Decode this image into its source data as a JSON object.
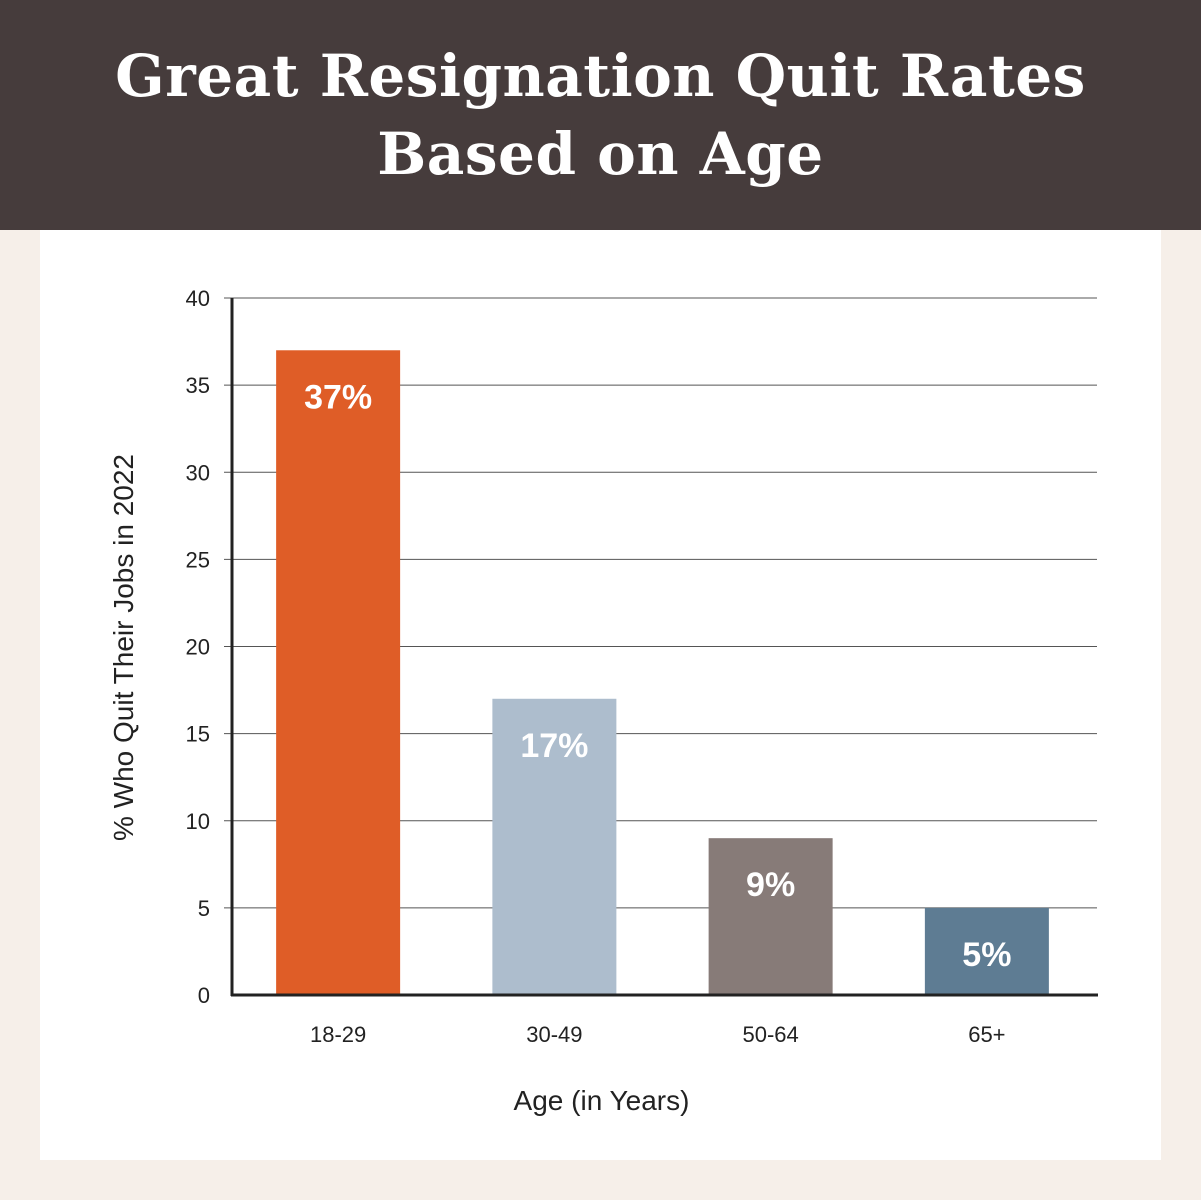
{
  "header": {
    "title_line1": "Great Resignation Quit Rates",
    "title_line2": "Based on Age",
    "background": "#463c3c"
  },
  "chart_data": {
    "type": "bar",
    "title": "Great Resignation Quit Rates Based on Age",
    "categories": [
      "18-29",
      "30-49",
      "50-64",
      "65+"
    ],
    "values": [
      37,
      17,
      9,
      5
    ],
    "data_labels": [
      "37%",
      "17%",
      "9%",
      "5%"
    ],
    "colors": [
      "#df5d27",
      "#adbdcd",
      "#877b78",
      "#5e7c93"
    ],
    "xlabel": "Age (in Years)",
    "ylabel": "% Who Quit Their Jobs in 2022",
    "ylim": [
      0,
      40
    ],
    "yticks": [
      0,
      5,
      10,
      15,
      20,
      25,
      30,
      35,
      40
    ],
    "grid": true,
    "legend": "none"
  }
}
